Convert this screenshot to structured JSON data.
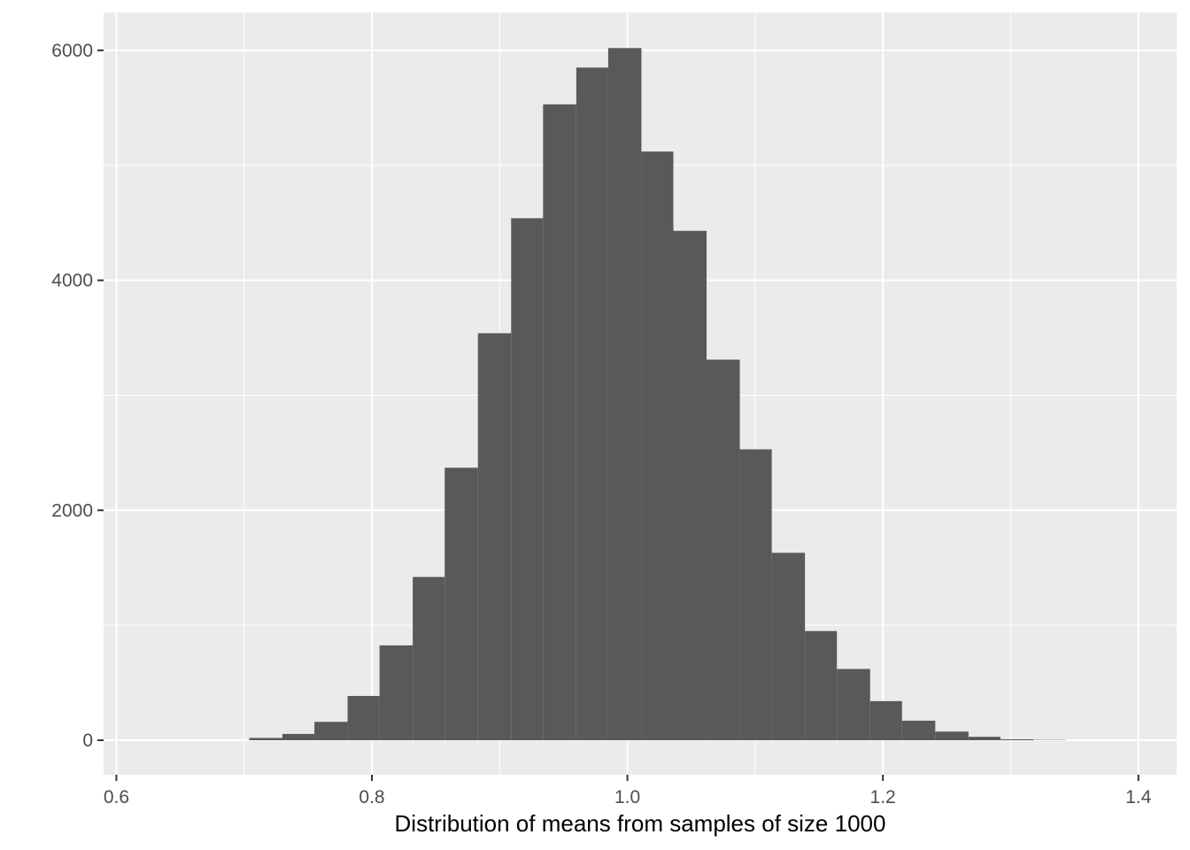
{
  "chart_data": {
    "type": "histogram",
    "title": "",
    "xlabel": "Distribution of means from samples of size 1000",
    "ylabel": "",
    "xlim": [
      0.59,
      1.43
    ],
    "ylim": [
      -300,
      6330
    ],
    "x_ticks": [
      0.6,
      0.8,
      1.0,
      1.2,
      1.4
    ],
    "x_tick_labels": [
      "0.6",
      "0.8",
      "1.0",
      "1.2",
      "1.4"
    ],
    "y_ticks": [
      0,
      2000,
      4000,
      6000
    ],
    "y_tick_labels": [
      "0",
      "2000",
      "4000",
      "6000"
    ],
    "grid": true,
    "bar_color": "#595959",
    "panel_color": "#ebebeb",
    "bins": [
      {
        "x_start": 0.704,
        "x_end": 0.73,
        "count": 20
      },
      {
        "x_start": 0.73,
        "x_end": 0.755,
        "count": 55
      },
      {
        "x_start": 0.755,
        "x_end": 0.781,
        "count": 160
      },
      {
        "x_start": 0.781,
        "x_end": 0.806,
        "count": 385
      },
      {
        "x_start": 0.806,
        "x_end": 0.832,
        "count": 825
      },
      {
        "x_start": 0.832,
        "x_end": 0.857,
        "count": 1420
      },
      {
        "x_start": 0.857,
        "x_end": 0.883,
        "count": 2370
      },
      {
        "x_start": 0.883,
        "x_end": 0.909,
        "count": 3540
      },
      {
        "x_start": 0.909,
        "x_end": 0.934,
        "count": 4540
      },
      {
        "x_start": 0.934,
        "x_end": 0.96,
        "count": 5530
      },
      {
        "x_start": 0.96,
        "x_end": 0.985,
        "count": 5850
      },
      {
        "x_start": 0.985,
        "x_end": 1.011,
        "count": 6020
      },
      {
        "x_start": 1.011,
        "x_end": 1.036,
        "count": 5120
      },
      {
        "x_start": 1.036,
        "x_end": 1.062,
        "count": 4430
      },
      {
        "x_start": 1.062,
        "x_end": 1.088,
        "count": 3310
      },
      {
        "x_start": 1.088,
        "x_end": 1.113,
        "count": 2530
      },
      {
        "x_start": 1.113,
        "x_end": 1.139,
        "count": 1630
      },
      {
        "x_start": 1.139,
        "x_end": 1.164,
        "count": 950
      },
      {
        "x_start": 1.164,
        "x_end": 1.19,
        "count": 620
      },
      {
        "x_start": 1.19,
        "x_end": 1.215,
        "count": 340
      },
      {
        "x_start": 1.215,
        "x_end": 1.241,
        "count": 170
      },
      {
        "x_start": 1.241,
        "x_end": 1.267,
        "count": 75
      },
      {
        "x_start": 1.267,
        "x_end": 1.292,
        "count": 30
      },
      {
        "x_start": 1.292,
        "x_end": 1.318,
        "count": 8
      },
      {
        "x_start": 1.318,
        "x_end": 1.343,
        "count": 3
      }
    ]
  }
}
